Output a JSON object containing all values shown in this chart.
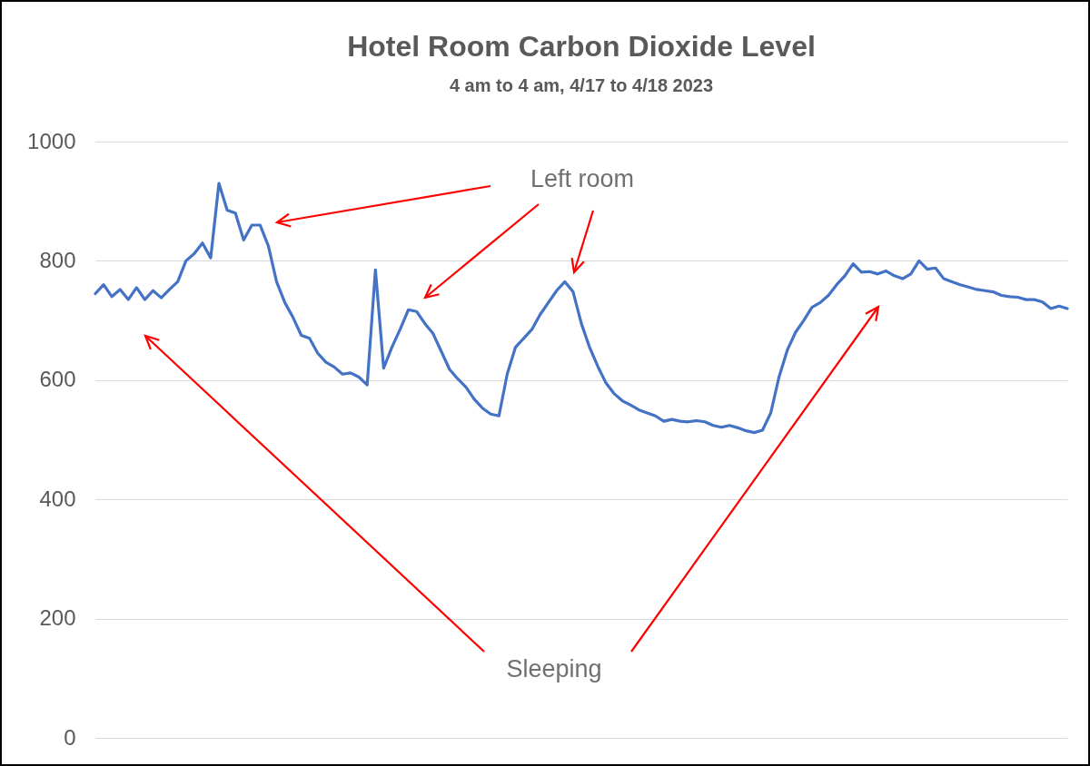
{
  "chart_data": {
    "type": "line",
    "title": "Hotel Room Carbon Dioxide Level",
    "subtitle": "4 am to 4 am, 4/17 to 4/18 2023",
    "categories": [
      null,
      null,
      null,
      null,
      null,
      null,
      null,
      null,
      null,
      null,
      null,
      null,
      null,
      null,
      null,
      null,
      null,
      null,
      null,
      null,
      null,
      null,
      null,
      null,
      null,
      null,
      null,
      null,
      null,
      null,
      null,
      null,
      null,
      null,
      null,
      null,
      null,
      null,
      null,
      null,
      null,
      null,
      null,
      null,
      null,
      null,
      null,
      null,
      null,
      null,
      null,
      null,
      null,
      null,
      null,
      null,
      null,
      null,
      null,
      null,
      null,
      null,
      null,
      null,
      null,
      null,
      null,
      null,
      null,
      null,
      null,
      null,
      null,
      null,
      null,
      null,
      null,
      null,
      null,
      null,
      null,
      null,
      null,
      null,
      null,
      null,
      null,
      null,
      null,
      null,
      null,
      null,
      null,
      null,
      null,
      null,
      null,
      null,
      null,
      null,
      null,
      null,
      null,
      null,
      null,
      null,
      null,
      null,
      null,
      null,
      null,
      null,
      null,
      null,
      null,
      null,
      null,
      null,
      null
    ],
    "series": [
      {
        "color": "#4472c4",
        "values": [
          745,
          760,
          740,
          752,
          735,
          755,
          735,
          750,
          738,
          752,
          765,
          800,
          812,
          830,
          805,
          930,
          885,
          880,
          835,
          860,
          860,
          825,
          765,
          730,
          705,
          675,
          670,
          645,
          630,
          622,
          610,
          612,
          605,
          592,
          785,
          620,
          655,
          685,
          718,
          715,
          695,
          678,
          648,
          618,
          602,
          588,
          568,
          553,
          543,
          540,
          610,
          655,
          670,
          685,
          710,
          730,
          750,
          765,
          748,
          695,
          655,
          623,
          595,
          577,
          565,
          558,
          550,
          545,
          540,
          531,
          534,
          531,
          530,
          532,
          530,
          524,
          521,
          524,
          520,
          515,
          512,
          516,
          545,
          605,
          650,
          680,
          700,
          722,
          730,
          742,
          760,
          775,
          795,
          781,
          782,
          778,
          783,
          775,
          770,
          778,
          800,
          786,
          788,
          770,
          765,
          760,
          756,
          752,
          750,
          748,
          742,
          740,
          739,
          735,
          735,
          731,
          720,
          724,
          720
        ]
      }
    ],
    "ylim": [
      0,
      1000
    ],
    "yticks": [
      0,
      200,
      400,
      600,
      800,
      1000
    ],
    "grid": "y",
    "tick_labels": "y",
    "annotations": [
      "Left room",
      "Sleeping"
    ]
  }
}
